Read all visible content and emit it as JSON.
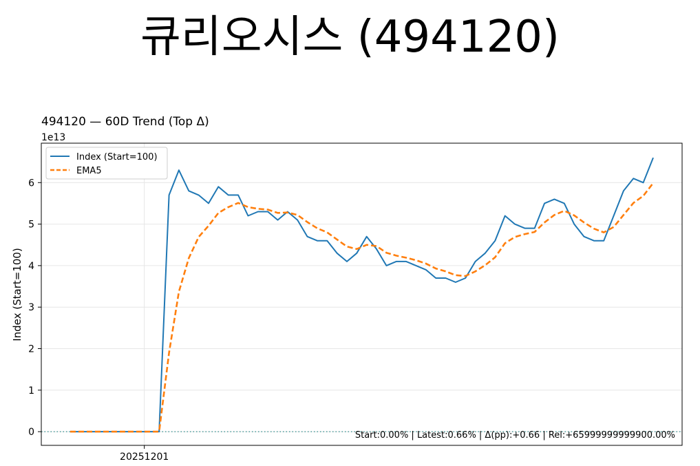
{
  "page_title": "큐리오시스 (494120)",
  "chart_data": {
    "type": "line",
    "title": "494120 — 60D Trend (Top Δ)",
    "ylabel": "Index (Start=100)",
    "xlabel": "",
    "y_multiplier_label": "1e13",
    "ylim": [
      -0.33,
      6.95
    ],
    "y_ticks": [
      0,
      1,
      2,
      3,
      4,
      5,
      6
    ],
    "x_tick_labels": [
      {
        "index": 8,
        "label": "20251201"
      }
    ],
    "grid": true,
    "legend_position": "upper-left",
    "series": [
      {
        "name": "Index (Start=100)",
        "color": "#1f77b4",
        "style": "solid",
        "values": [
          0,
          0,
          0,
          0,
          0,
          0,
          0,
          0,
          0,
          0,
          5.7,
          6.3,
          5.8,
          5.7,
          5.5,
          5.9,
          5.7,
          5.7,
          5.2,
          5.3,
          5.3,
          5.1,
          5.3,
          5.1,
          4.7,
          4.6,
          4.6,
          4.3,
          4.1,
          4.3,
          4.7,
          4.4,
          4.0,
          4.1,
          4.1,
          4.0,
          3.9,
          3.7,
          3.7,
          3.6,
          3.7,
          4.1,
          4.3,
          4.6,
          5.2,
          5.0,
          4.9,
          4.9,
          5.5,
          5.6,
          5.5,
          5.0,
          4.7,
          4.6,
          4.6,
          5.2,
          5.8,
          6.1,
          6.0,
          6.6
        ]
      },
      {
        "name": "EMA5",
        "color": "#ff7f0e",
        "style": "dashed",
        "values": [
          0,
          0,
          0,
          0,
          0,
          0,
          0,
          0,
          0,
          0,
          1.9,
          3.37,
          4.18,
          4.69,
          4.96,
          5.27,
          5.41,
          5.51,
          5.41,
          5.37,
          5.35,
          5.27,
          5.28,
          5.22,
          5.05,
          4.9,
          4.8,
          4.63,
          4.46,
          4.4,
          4.5,
          4.47,
          4.31,
          4.24,
          4.19,
          4.13,
          4.05,
          3.93,
          3.86,
          3.77,
          3.75,
          3.86,
          4.01,
          4.2,
          4.54,
          4.69,
          4.76,
          4.81,
          5.04,
          5.22,
          5.32,
          5.21,
          5.04,
          4.89,
          4.8,
          4.93,
          5.22,
          5.51,
          5.68,
          5.99
        ]
      }
    ],
    "reference_line": {
      "y": 0,
      "color": "#2a8a8a",
      "style": "dotted"
    },
    "annotation": "Start:0.00% | Latest:0.66% | Δ(pp):+0.66 | Rel:+65999999999900.00%"
  }
}
